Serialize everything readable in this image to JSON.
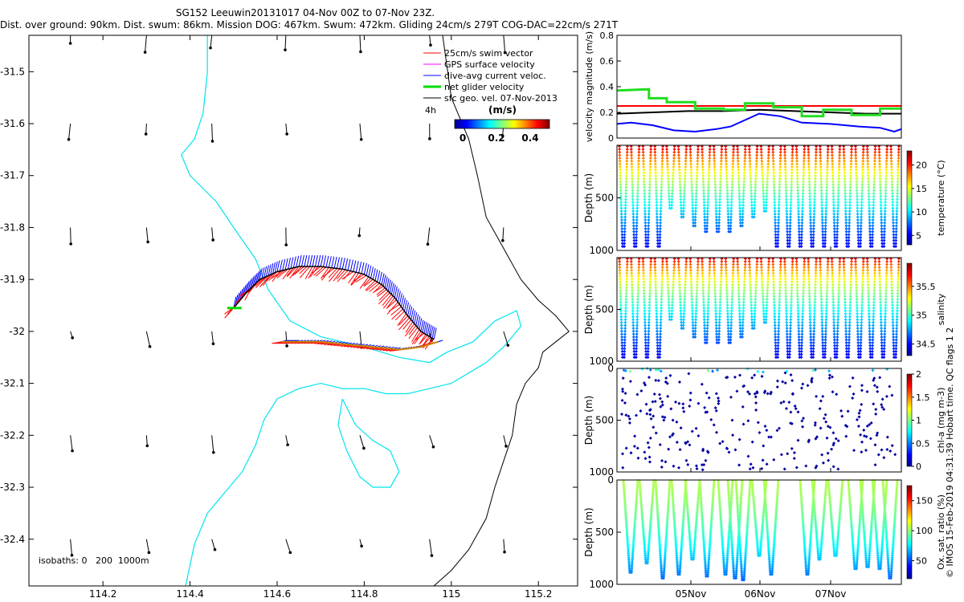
{
  "header": {
    "title": "SG152 Leeuwin20131017 04-Nov 00Z to 07-Nov 23Z.",
    "subtitle": "Dist. over ground: 90km. Dist. swum: 86km. Mission DOG: 467km. Swum: 472km. Gliding 24cm/s 279T COG-DAC=22cm/s 271T"
  },
  "credit": "© IMOS 15-Feb-2019 04:31:39 Hobart time. QC flags 1  2",
  "colors": {
    "swim": "#ff0000",
    "gps": "#ff00ff",
    "dac": "#0000ff",
    "net": "#00dd00",
    "geo": "#000000",
    "isobath": "#00e5ee",
    "coast": "#000000"
  },
  "chart_data": [
    {
      "type": "scatter",
      "name": "map",
      "xlim": [
        114.03,
        115.29
      ],
      "ylim": [
        -32.49,
        -31.43
      ],
      "xticks": [
        "114.2",
        "114.4",
        "114.6",
        "114.8",
        "115",
        "115.2"
      ],
      "yticks": [
        "-31.5",
        "-31.6",
        "-31.7",
        "-31.8",
        "-31.9",
        "-32",
        "-32.1",
        "-32.2",
        "-32.3",
        "-32.4"
      ],
      "legend": [
        "25cm/s swim vector",
        "GPS surface velocity",
        "dive-avg current veloc.",
        "net glider velocity",
        "sfc geo. vel. 07-Nov-2013"
      ],
      "legend_placement": "top-right",
      "scale_label": "4h",
      "colorbar": {
        "label": "(m/s)",
        "ticks": [
          "0",
          "0.2",
          "0.4"
        ],
        "range": [
          0,
          0.5
        ]
      },
      "isobath_label": "isobaths: 0   200  1000m",
      "track_outbound": [
        [
          114.5,
          -31.955
        ],
        [
          114.53,
          -31.925
        ],
        [
          114.56,
          -31.9
        ],
        [
          114.6,
          -31.885
        ],
        [
          114.65,
          -31.875
        ],
        [
          114.7,
          -31.875
        ],
        [
          114.75,
          -31.88
        ],
        [
          114.8,
          -31.89
        ],
        [
          114.84,
          -31.91
        ],
        [
          114.87,
          -31.935
        ],
        [
          114.9,
          -31.97
        ],
        [
          114.93,
          -32.0
        ],
        [
          114.96,
          -32.015
        ]
      ],
      "track_return": [
        [
          114.97,
          -32.02
        ],
        [
          114.93,
          -32.03
        ],
        [
          114.88,
          -32.035
        ],
        [
          114.82,
          -32.03
        ],
        [
          114.76,
          -32.025
        ],
        [
          114.7,
          -32.02
        ],
        [
          114.64,
          -32.02
        ],
        [
          114.61,
          -32.02
        ]
      ],
      "isobath_200": [
        [
          114.44,
          -31.43
        ],
        [
          114.44,
          -31.5
        ],
        [
          114.43,
          -31.58
        ],
        [
          114.41,
          -31.63
        ],
        [
          114.38,
          -31.66
        ],
        [
          114.4,
          -31.7
        ],
        [
          114.46,
          -31.75
        ],
        [
          114.5,
          -31.8
        ],
        [
          114.55,
          -31.86
        ],
        [
          114.58,
          -31.92
        ],
        [
          114.63,
          -31.98
        ],
        [
          114.7,
          -32.01
        ],
        [
          114.8,
          -32.03
        ],
        [
          114.88,
          -32.05
        ],
        [
          114.95,
          -32.06
        ],
        [
          114.99,
          -32.04
        ],
        [
          115.05,
          -32.02
        ],
        [
          115.1,
          -31.98
        ],
        [
          115.15,
          -31.96
        ],
        [
          115.16,
          -31.99
        ],
        [
          115.12,
          -32.03
        ],
        [
          115.08,
          -32.06
        ],
        [
          115.04,
          -32.08
        ],
        [
          115.0,
          -32.1
        ],
        [
          114.95,
          -32.11
        ],
        [
          114.9,
          -32.12
        ],
        [
          114.85,
          -32.12
        ],
        [
          114.8,
          -32.11
        ],
        [
          114.75,
          -32.11
        ],
        [
          114.7,
          -32.1
        ],
        [
          114.65,
          -32.11
        ],
        [
          114.6,
          -32.13
        ],
        [
          114.57,
          -32.17
        ],
        [
          114.55,
          -32.22
        ],
        [
          114.52,
          -32.27
        ],
        [
          114.48,
          -32.31
        ],
        [
          114.44,
          -32.35
        ],
        [
          114.41,
          -32.41
        ],
        [
          114.39,
          -32.49
        ]
      ],
      "isobath_200b": [
        [
          114.75,
          -32.13
        ],
        [
          114.78,
          -32.18
        ],
        [
          114.82,
          -32.21
        ],
        [
          114.86,
          -32.23
        ],
        [
          114.88,
          -32.27
        ],
        [
          114.86,
          -32.3
        ],
        [
          114.82,
          -32.3
        ],
        [
          114.79,
          -32.28
        ],
        [
          114.76,
          -32.23
        ],
        [
          114.74,
          -32.18
        ],
        [
          114.75,
          -32.13
        ]
      ],
      "coast": [
        [
          114.98,
          -31.43
        ],
        [
          115.0,
          -31.55
        ],
        [
          115.04,
          -31.63
        ],
        [
          115.06,
          -31.7
        ],
        [
          115.08,
          -31.78
        ],
        [
          115.12,
          -31.84
        ],
        [
          115.16,
          -31.9
        ],
        [
          115.2,
          -31.94
        ],
        [
          115.24,
          -31.97
        ],
        [
          115.27,
          -32.0
        ],
        [
          115.24,
          -32.02
        ],
        [
          115.21,
          -32.04
        ],
        [
          115.2,
          -32.07
        ],
        [
          115.17,
          -32.1
        ],
        [
          115.15,
          -32.14
        ],
        [
          115.14,
          -32.2
        ],
        [
          115.12,
          -32.25
        ],
        [
          115.1,
          -32.3
        ],
        [
          115.08,
          -32.36
        ],
        [
          115.04,
          -32.42
        ],
        [
          115.0,
          -32.46
        ],
        [
          114.96,
          -32.49
        ]
      ]
    },
    {
      "type": "line",
      "name": "velocity",
      "ylabel": "velocity magnitude (m/s)",
      "ylim": [
        0,
        0.8
      ],
      "yticks": [
        "0",
        "0.2",
        "0.4",
        "0.6",
        "0.8"
      ],
      "xlim": [
        0,
        4
      ],
      "series": [
        {
          "name": "red",
          "color": "#ff0000",
          "x": [
            0,
            4
          ],
          "y": [
            0.25,
            0.25
          ]
        },
        {
          "name": "black",
          "color": "#000000",
          "x": [
            0,
            0.5,
            1,
            1.5,
            2,
            2.5,
            3,
            3.5,
            4
          ],
          "y": [
            0.19,
            0.2,
            0.21,
            0.21,
            0.22,
            0.21,
            0.2,
            0.19,
            0.19
          ]
        },
        {
          "name": "blue",
          "color": "#0000ff",
          "x": [
            0,
            0.2,
            0.5,
            0.8,
            1.1,
            1.4,
            1.6,
            1.8,
            2.0,
            2.3,
            2.6,
            3.0,
            3.4,
            3.7,
            3.9,
            4.0
          ],
          "y": [
            0.11,
            0.12,
            0.1,
            0.06,
            0.05,
            0.07,
            0.09,
            0.14,
            0.19,
            0.17,
            0.12,
            0.11,
            0.09,
            0.08,
            0.05,
            0.07
          ]
        },
        {
          "name": "green",
          "color": "#22dd22",
          "x": [
            0,
            0.45,
            0.45,
            0.7,
            0.7,
            1.1,
            1.1,
            1.5,
            1.5,
            1.8,
            1.8,
            2.2,
            2.2,
            2.6,
            2.6,
            2.9,
            2.9,
            3.3,
            3.3,
            3.7,
            3.7,
            4.0
          ],
          "y": [
            0.37,
            0.38,
            0.31,
            0.31,
            0.28,
            0.28,
            0.23,
            0.23,
            0.22,
            0.22,
            0.27,
            0.27,
            0.24,
            0.24,
            0.17,
            0.17,
            0.22,
            0.22,
            0.18,
            0.18,
            0.23,
            0.23
          ]
        }
      ]
    },
    {
      "type": "scatter",
      "name": "temperature",
      "ylabel": "Depth (m)",
      "colorbar_label": "temperature (°C)",
      "colorbar_ticks": [
        "5",
        "10",
        "15",
        "20"
      ],
      "colorbar_range": [
        3,
        23
      ],
      "ylim": [
        0,
        1000
      ],
      "yticks": [
        "500",
        "1000"
      ],
      "n_profiles": 24
    },
    {
      "type": "scatter",
      "name": "salinity",
      "ylabel": "Depth (m)",
      "colorbar_label": "salinity",
      "colorbar_ticks": [
        "34.5",
        "35",
        "35.5"
      ],
      "colorbar_range": [
        34.3,
        35.9
      ],
      "ylim": [
        0,
        1000
      ],
      "yticks": [
        "500",
        "1000"
      ],
      "n_profiles": 24
    },
    {
      "type": "scatter",
      "name": "chlorophyll",
      "ylabel": "Depth (m)",
      "colorbar_label": "chl-a (mg m-3)",
      "colorbar_ticks": [
        "0",
        "0.5",
        "1",
        "1.5",
        "2"
      ],
      "colorbar_range": [
        0,
        2
      ],
      "ylim": [
        0,
        1000
      ],
      "yticks": [
        "0",
        "500",
        "1000"
      ]
    },
    {
      "type": "scatter",
      "name": "oxygen",
      "ylabel": "Depth (m)",
      "colorbar_label": "Ox. sat. ratio (%)",
      "colorbar_ticks": [
        "50",
        "100",
        "150"
      ],
      "colorbar_range": [
        20,
        175
      ],
      "ylim": [
        0,
        1000
      ],
      "yticks": [
        "0",
        "500",
        "1000"
      ],
      "xticks": [
        "05Nov",
        "06Nov",
        "07Nov"
      ]
    }
  ]
}
